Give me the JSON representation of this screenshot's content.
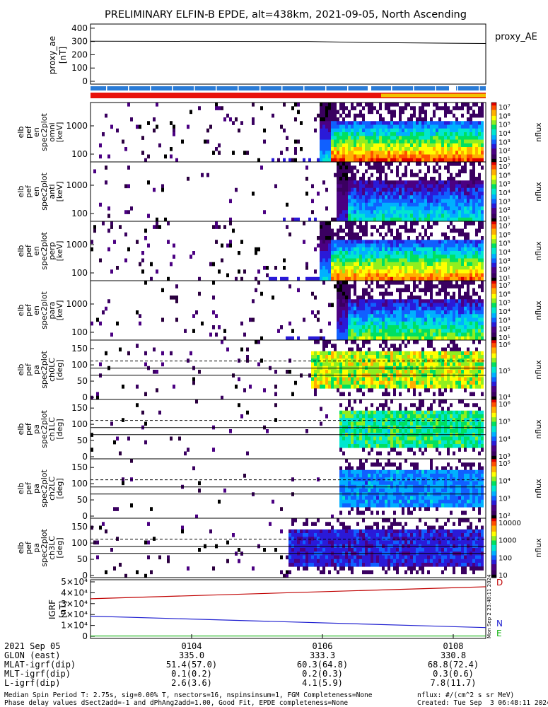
{
  "title": "PRELIMINARY ELFIN-B EPDE, alt=438km, 2021-09-05, North Ascending",
  "colors": {
    "bar_blue": "#2a7bd6",
    "bar_red": "#e8120c",
    "bar_yellow": "#f2c300",
    "bfield_D": "#c00000",
    "bfield_N": "#2020d0",
    "bfield_E": "#10b010"
  },
  "chart_data": [
    {
      "type": "line",
      "panel": "proxy_ae",
      "ylabel": "proxy_ae [nT]",
      "legend": "proxy_AE",
      "yticks": [
        "400",
        "300",
        "200",
        "100",
        "0"
      ],
      "ylim": [
        0,
        410
      ],
      "x": [
        0,
        0.55,
        0.7,
        1.0
      ],
      "y": [
        302,
        300,
        292,
        285
      ]
    },
    {
      "type": "heatmap",
      "panel": "elb_pef_en_spec2plot_omni",
      "ylabel": [
        "elb",
        "pef",
        "en",
        "spec2plot",
        "omni",
        "[keV]"
      ],
      "yticks": [
        "1000",
        "100"
      ],
      "colorbar": {
        "label": "nflux",
        "ticks": [
          "10⁷",
          "10⁶",
          "10⁵",
          "10⁴",
          "10³",
          "10²",
          "10¹"
        ]
      }
    },
    {
      "type": "heatmap",
      "panel": "elb_pef_en_spec2plot_anti",
      "ylabel": [
        "elb",
        "pef",
        "en",
        "spec2plot",
        "anti",
        "[keV]"
      ],
      "yticks": [
        "1000",
        "100"
      ],
      "colorbar": {
        "label": "nflux",
        "ticks": [
          "10⁷",
          "10⁶",
          "10⁵",
          "10⁴",
          "10³",
          "10²",
          "10¹"
        ]
      }
    },
    {
      "type": "heatmap",
      "panel": "elb_pef_en_spec2plot_perp",
      "ylabel": [
        "elb",
        "pef",
        "en",
        "spec2plot",
        "perp",
        "[keV]"
      ],
      "yticks": [
        "1000",
        "100"
      ],
      "colorbar": {
        "label": "nflux",
        "ticks": [
          "10⁷",
          "10⁶",
          "10⁵",
          "10⁴",
          "10³",
          "10²",
          "10¹"
        ]
      }
    },
    {
      "type": "heatmap",
      "panel": "elb_pef_en_spec2plot_para",
      "ylabel": [
        "elb",
        "pef",
        "en",
        "spec2plot",
        "para",
        "[keV]"
      ],
      "yticks": [
        "1000",
        "100"
      ],
      "colorbar": {
        "label": "nflux",
        "ticks": [
          "10⁷",
          "10⁶",
          "10⁵",
          "10⁴",
          "10³",
          "10²",
          "10¹"
        ]
      }
    },
    {
      "type": "heatmap",
      "panel": "elb_pef_pa_spec2plot_ch0LC",
      "ylabel": [
        "elb",
        "pef",
        "pa",
        "spec2plot",
        "ch0LC",
        "[deg]"
      ],
      "yticks": [
        "150",
        "100",
        "50",
        "0"
      ],
      "colorbar": {
        "label": "nflux",
        "ticks": [
          "10⁶",
          "10⁵",
          "10⁴"
        ]
      }
    },
    {
      "type": "heatmap",
      "panel": "elb_pef_pa_spec2plot_ch1LC",
      "ylabel": [
        "elb",
        "pef",
        "pa",
        "spec2plot",
        "ch1LC",
        "[deg]"
      ],
      "yticks": [
        "150",
        "100",
        "50",
        "0"
      ],
      "colorbar": {
        "label": "nflux",
        "ticks": [
          "10⁶",
          "10⁵",
          "10⁴",
          "10³"
        ]
      }
    },
    {
      "type": "heatmap",
      "panel": "elb_pef_pa_spec2plot_ch2LC",
      "ylabel": [
        "elb",
        "pef",
        "pa",
        "spec2plot",
        "ch2LC",
        "[deg]"
      ],
      "yticks": [
        "150",
        "100",
        "50",
        "0"
      ],
      "colorbar": {
        "label": "nflux",
        "ticks": [
          "10⁵",
          "10⁴",
          "10³",
          "10²"
        ]
      }
    },
    {
      "type": "heatmap",
      "panel": "elb_pef_pa_spec2plot_ch3LC",
      "ylabel": [
        "elb",
        "pef",
        "pa",
        "spec2plot",
        "ch3LC",
        "[deg]"
      ],
      "yticks": [
        "150",
        "100",
        "50",
        "0"
      ],
      "colorbar": {
        "label": "nflux",
        "ticks": [
          "10000",
          "1000",
          "100",
          "10"
        ]
      }
    },
    {
      "type": "line",
      "panel": "igrf",
      "ylabel": "IGRF [nT]",
      "yticks": [
        "5×10⁴",
        "4×10⁴",
        "3×10⁴",
        "2×10⁴",
        "1×10⁴",
        "0"
      ],
      "ylim": [
        0,
        50000
      ],
      "series": [
        {
          "name": "D",
          "x": [
            0,
            1
          ],
          "y": [
            34500,
            45500
          ]
        },
        {
          "name": "N",
          "x": [
            0,
            1
          ],
          "y": [
            18500,
            8000
          ]
        },
        {
          "name": "E",
          "x": [
            0,
            1
          ],
          "y": [
            300,
            300
          ]
        }
      ],
      "vertical_text": "Mon Sep  2 23:48:11 2024"
    }
  ],
  "footer": {
    "date": "2021 Sep 05",
    "times": [
      "0104",
      "0106",
      "0108"
    ],
    "rows": [
      {
        "label": "GLON (east)",
        "values": [
          "335.0",
          "333.3",
          "330.8"
        ]
      },
      {
        "label": "MLAT-igrf(dip)",
        "values": [
          "51.4(57.0)",
          "60.3(64.8)",
          "68.8(72.4)"
        ]
      },
      {
        "label": "MLT-igrf(dip)",
        "values": [
          "0.1(0.2)",
          "0.2(0.3)",
          "0.3(0.6)"
        ]
      },
      {
        "label": "L-igrf(dip)",
        "values": [
          "2.6(3.6)",
          "4.1(5.9)",
          "7.8(11.7)"
        ]
      }
    ],
    "note1": "Median Spin Period T: 2.75s, sig=0.00% T, nsectors=16, nspinsinsum=1, FGM Completeness=None",
    "note2": "Phase delay values dSect2add=-1 and dPhAng2add=1.00, Good Fit, EPDE completeness=None",
    "units": "nflux: #/(cm^2 s sr MeV)",
    "created": "Created: Tue Sep  3 06:48:11 2024"
  }
}
